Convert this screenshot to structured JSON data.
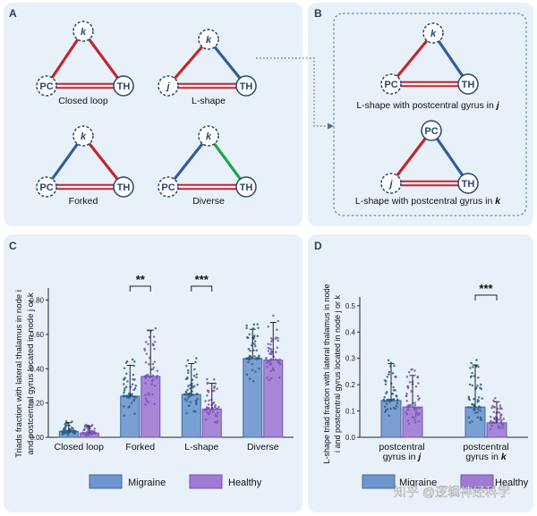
{
  "panels": {
    "a": {
      "label": "A",
      "triads": [
        "Closed loop",
        "L-shape",
        "Forked",
        "Diverse"
      ]
    },
    "b": {
      "label": "B",
      "captions": [
        "L-shape with postcentral gyrus in ",
        "j",
        "L-shape with postcentral gyrus in ",
        "k"
      ]
    },
    "c": {
      "label": "C"
    },
    "d": {
      "label": "D"
    }
  },
  "nodes": {
    "k": "k",
    "j": "j",
    "pc": "PC",
    "th": "TH"
  },
  "colors": {
    "red": "#c1272d",
    "blue": "#2f5d9b",
    "green": "#1aa64a",
    "migraine": "#6e96cd",
    "healthy": "#a07ad4"
  },
  "watermark": "知乎 @逻辑神经科学",
  "chart_data": [
    {
      "type": "bar",
      "panel": "C",
      "ylabel_lines": [
        "Triads fraction with lateral thalamus in node i",
        "and postcentral gyrus located in node j or k"
      ],
      "categories": [
        "Closed loop",
        "Forked",
        "L-shape",
        "Diverse"
      ],
      "yticks": [
        "0.00",
        "0.20",
        "0.40",
        "0.60",
        "0.80"
      ],
      "ylim": [
        0,
        0.85
      ],
      "series": [
        {
          "name": "Migraine",
          "values": [
            0.035,
            0.24,
            0.25,
            0.46
          ],
          "errors": [
            0.05,
            0.18,
            0.18,
            0.17
          ]
        },
        {
          "name": "Healthy",
          "values": [
            0.025,
            0.355,
            0.165,
            0.45
          ],
          "errors": [
            0.04,
            0.27,
            0.15,
            0.22
          ]
        }
      ],
      "significance": [
        {
          "category": "Forked",
          "label": "**",
          "y": 0.88
        },
        {
          "category": "L-shape",
          "label": "***",
          "y": 0.88
        }
      ],
      "legend": [
        "Migraine",
        "Healthy"
      ]
    },
    {
      "type": "bar",
      "panel": "D",
      "ylabel_lines": [
        "L-shape triad fraction with lateral thalamus in node",
        "i and postcentral gyrus located in node j or k"
      ],
      "categories": [
        "postcentral gyrus in j",
        "postcentral gyrus in k"
      ],
      "category_lines": [
        [
          "postcentral",
          "gyrus in ",
          "j"
        ],
        [
          "postcentral",
          "gyrus in ",
          "k"
        ]
      ],
      "yticks": [
        "0.0",
        "0.1",
        "0.2",
        "0.3",
        "0.4",
        "0.5"
      ],
      "ylim": [
        0,
        0.52
      ],
      "series": [
        {
          "name": "Migraine",
          "values": [
            0.14,
            0.115
          ],
          "errors": [
            0.14,
            0.16
          ]
        },
        {
          "name": "Healthy",
          "values": [
            0.115,
            0.055
          ],
          "errors": [
            0.12,
            0.08
          ]
        }
      ],
      "significance": [
        {
          "category": "postcentral gyrus in k",
          "label": "***",
          "y": 0.57
        }
      ],
      "legend": [
        "Migraine",
        "Healthy"
      ]
    }
  ]
}
